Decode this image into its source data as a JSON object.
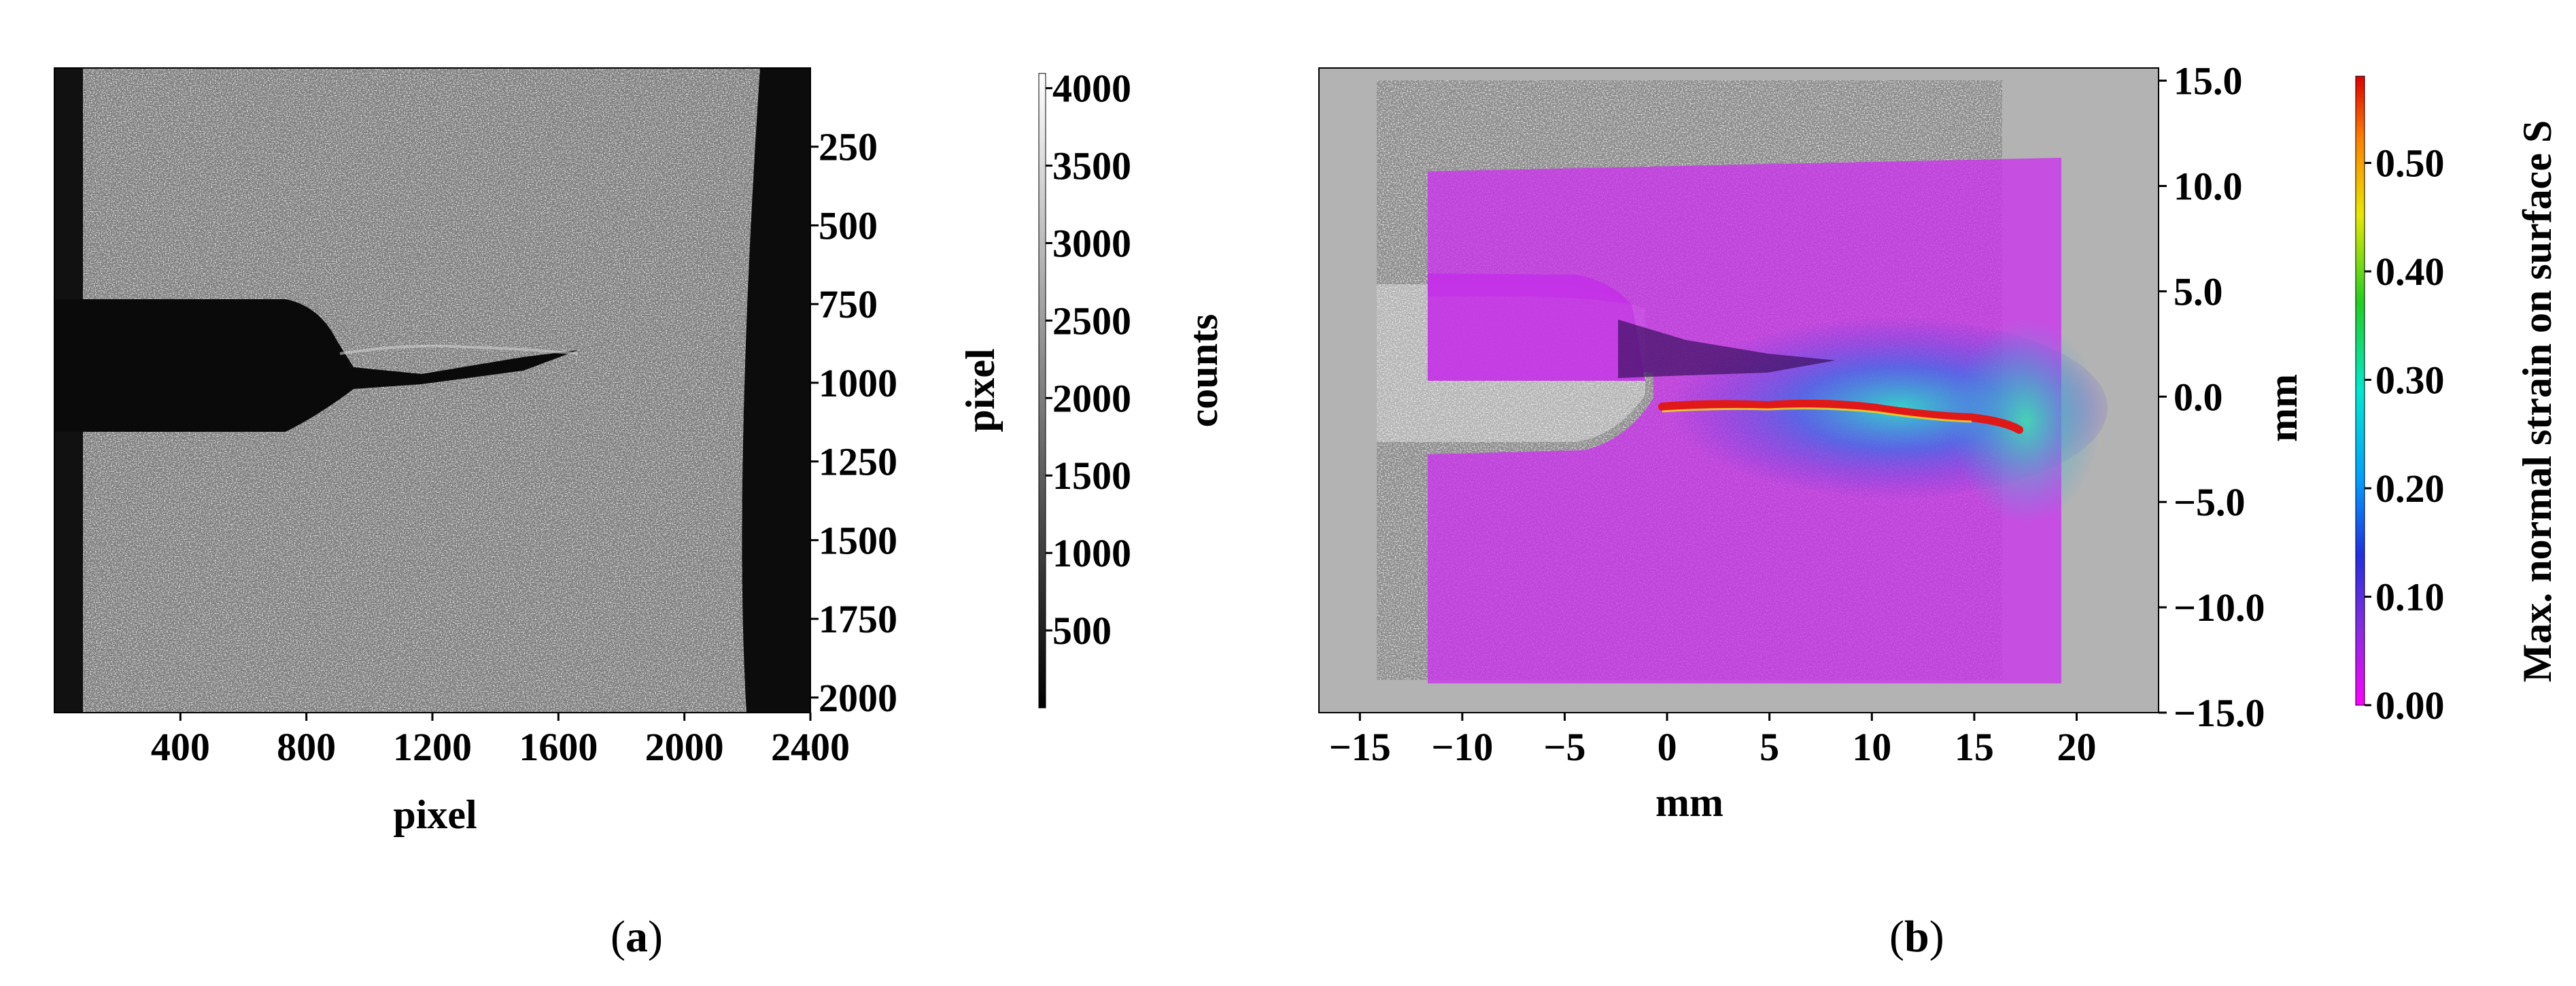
{
  "captions": {
    "a": "a",
    "b": "b"
  },
  "colors": {
    "mask": "#cc33ee",
    "crack": "#e01818",
    "background_grey": "#b3b3b3"
  },
  "chart_data": [
    {
      "type": "heatmap",
      "panel": "a",
      "xlabel": "pixel",
      "ylabel": "pixel",
      "x_ticks": [
        400,
        800,
        1200,
        1600,
        2000,
        2400
      ],
      "y_ticks": [
        250,
        500,
        750,
        1000,
        1250,
        1500,
        1750,
        2000
      ],
      "xlim": [
        0,
        2400
      ],
      "ylim": [
        2048,
        0
      ],
      "colorbar": {
        "label": "counts",
        "ticks": [
          500,
          1000,
          1500,
          2000,
          2500,
          3000,
          3500,
          4000
        ],
        "range": [
          0,
          4095
        ],
        "colormap": "gray"
      }
    },
    {
      "type": "heatmap",
      "panel": "b",
      "xlabel": "mm",
      "ylabel": "mm",
      "x_ticks": [
        -15,
        -10,
        -5,
        0,
        5,
        10,
        15,
        20
      ],
      "x_tick_labels": [
        "−15",
        "−10",
        "−5",
        "0",
        "5",
        "10",
        "15",
        "20"
      ],
      "y_ticks": [
        15,
        10,
        5,
        0,
        -5,
        -10,
        -15
      ],
      "y_tick_labels": [
        "15.0",
        "10.0",
        "5.0",
        "0.0",
        "−5.0",
        "−10.0",
        "−15.0"
      ],
      "xlim": [
        -17,
        24
      ],
      "ylim": [
        -15,
        15.6
      ],
      "colorbar": {
        "label": "Max. normal strain on surface S",
        "ticks": [
          0,
          0.1,
          0.2,
          0.3,
          0.4,
          0.5
        ],
        "tick_labels": [
          "0.00",
          "0.10",
          "0.20",
          "0.30",
          "0.40",
          "0.50"
        ],
        "range": [
          0,
          0.58
        ],
        "colormap": "rainbow (magenta → red)"
      }
    }
  ]
}
